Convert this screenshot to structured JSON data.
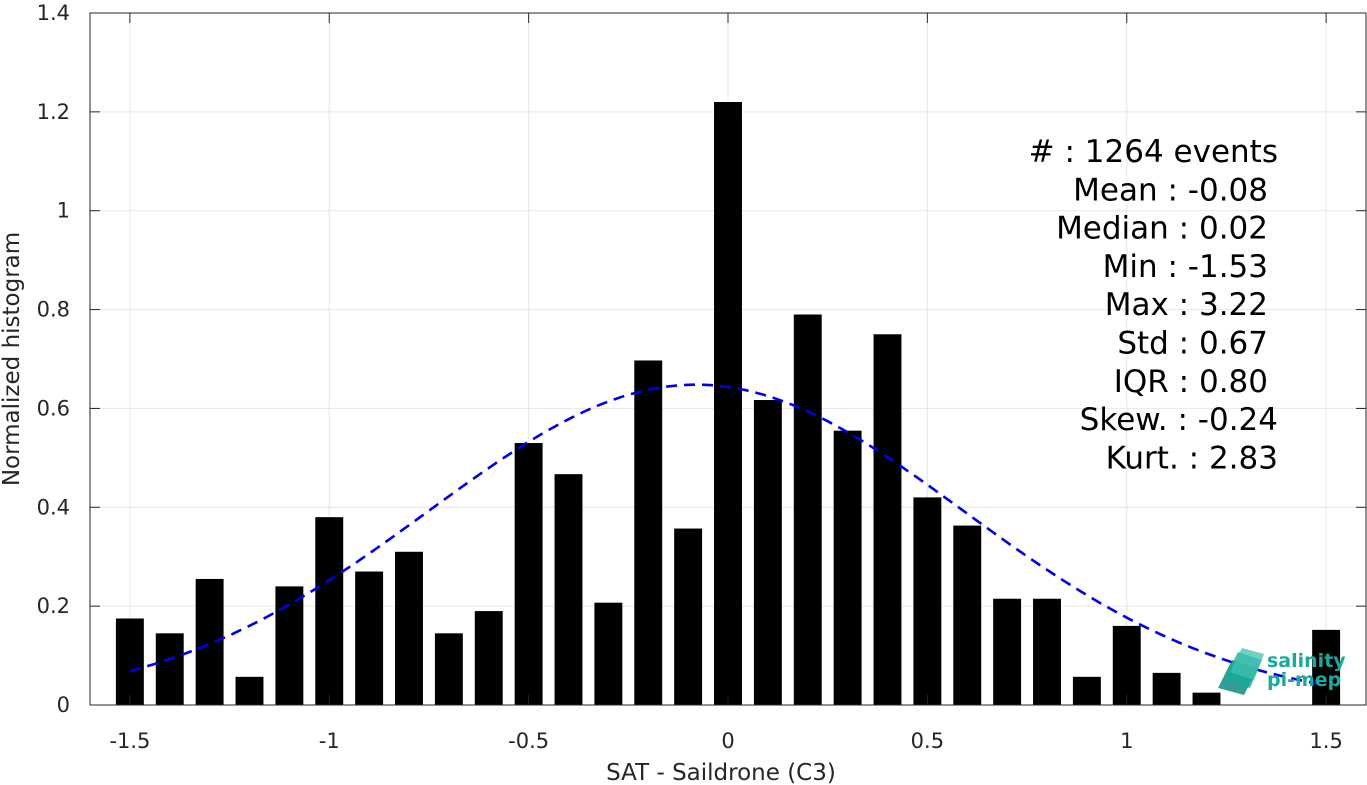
{
  "chart_data": {
    "type": "bar",
    "xlabel": "SAT - Saildrone (C3)",
    "ylabel": "Normalized histogram",
    "xlim": [
      -1.6,
      1.6
    ],
    "ylim": [
      0,
      1.4
    ],
    "xticks": [
      -1.5,
      -1,
      -0.5,
      0,
      0.5,
      1,
      1.5
    ],
    "xtick_labels": [
      "-1.5",
      "-1",
      "-0.5",
      "0",
      "0.5",
      "1",
      "1.5"
    ],
    "yticks": [
      0,
      0.2,
      0.4,
      0.6,
      0.8,
      1,
      1.2,
      1.4
    ],
    "ytick_labels": [
      "0",
      "0.2",
      "0.4",
      "0.6",
      "0.8",
      "1",
      "1.2",
      "1.4"
    ],
    "grid": true,
    "bar_color": "#000000",
    "bars": {
      "x": [
        -1.5,
        -1.4,
        -1.3,
        -1.2,
        -1.1,
        -1.0,
        -0.9,
        -0.8,
        -0.7,
        -0.6,
        -0.5,
        -0.4,
        -0.3,
        -0.2,
        -0.1,
        0.0,
        0.1,
        0.2,
        0.3,
        0.4,
        0.5,
        0.6,
        0.7,
        0.8,
        0.9,
        1.0,
        1.1,
        1.2,
        1.5
      ],
      "values": [
        0.175,
        0.145,
        0.255,
        0.057,
        0.24,
        0.38,
        0.27,
        0.31,
        0.145,
        0.19,
        0.53,
        0.467,
        0.207,
        0.697,
        0.357,
        1.22,
        0.617,
        0.79,
        0.555,
        0.75,
        0.42,
        0.363,
        0.215,
        0.215,
        0.057,
        0.16,
        0.065,
        0.025,
        0.152
      ]
    },
    "fit": {
      "type": "gaussian",
      "mean": -0.08,
      "std": 0.67,
      "peak": 0.648,
      "x_range": [
        -1.5,
        1.5
      ],
      "color": "#0000e6",
      "style": "dashed"
    },
    "stats": [
      {
        "label": "#  : 1264 events"
      },
      {
        "label": "Mean : -0.08"
      },
      {
        "label": "Median : 0.02"
      },
      {
        "label": "Min : -1.53"
      },
      {
        "label": "Max : 3.22"
      },
      {
        "label": "Std : 0.67"
      },
      {
        "label": "IQR : 0.80"
      },
      {
        "label": "Skew. : -0.24"
      },
      {
        "label": "Kurt. : 2.83"
      }
    ]
  },
  "logo": {
    "line1": "salinity",
    "line2": "pi-mep",
    "color": "#1aa99a"
  }
}
